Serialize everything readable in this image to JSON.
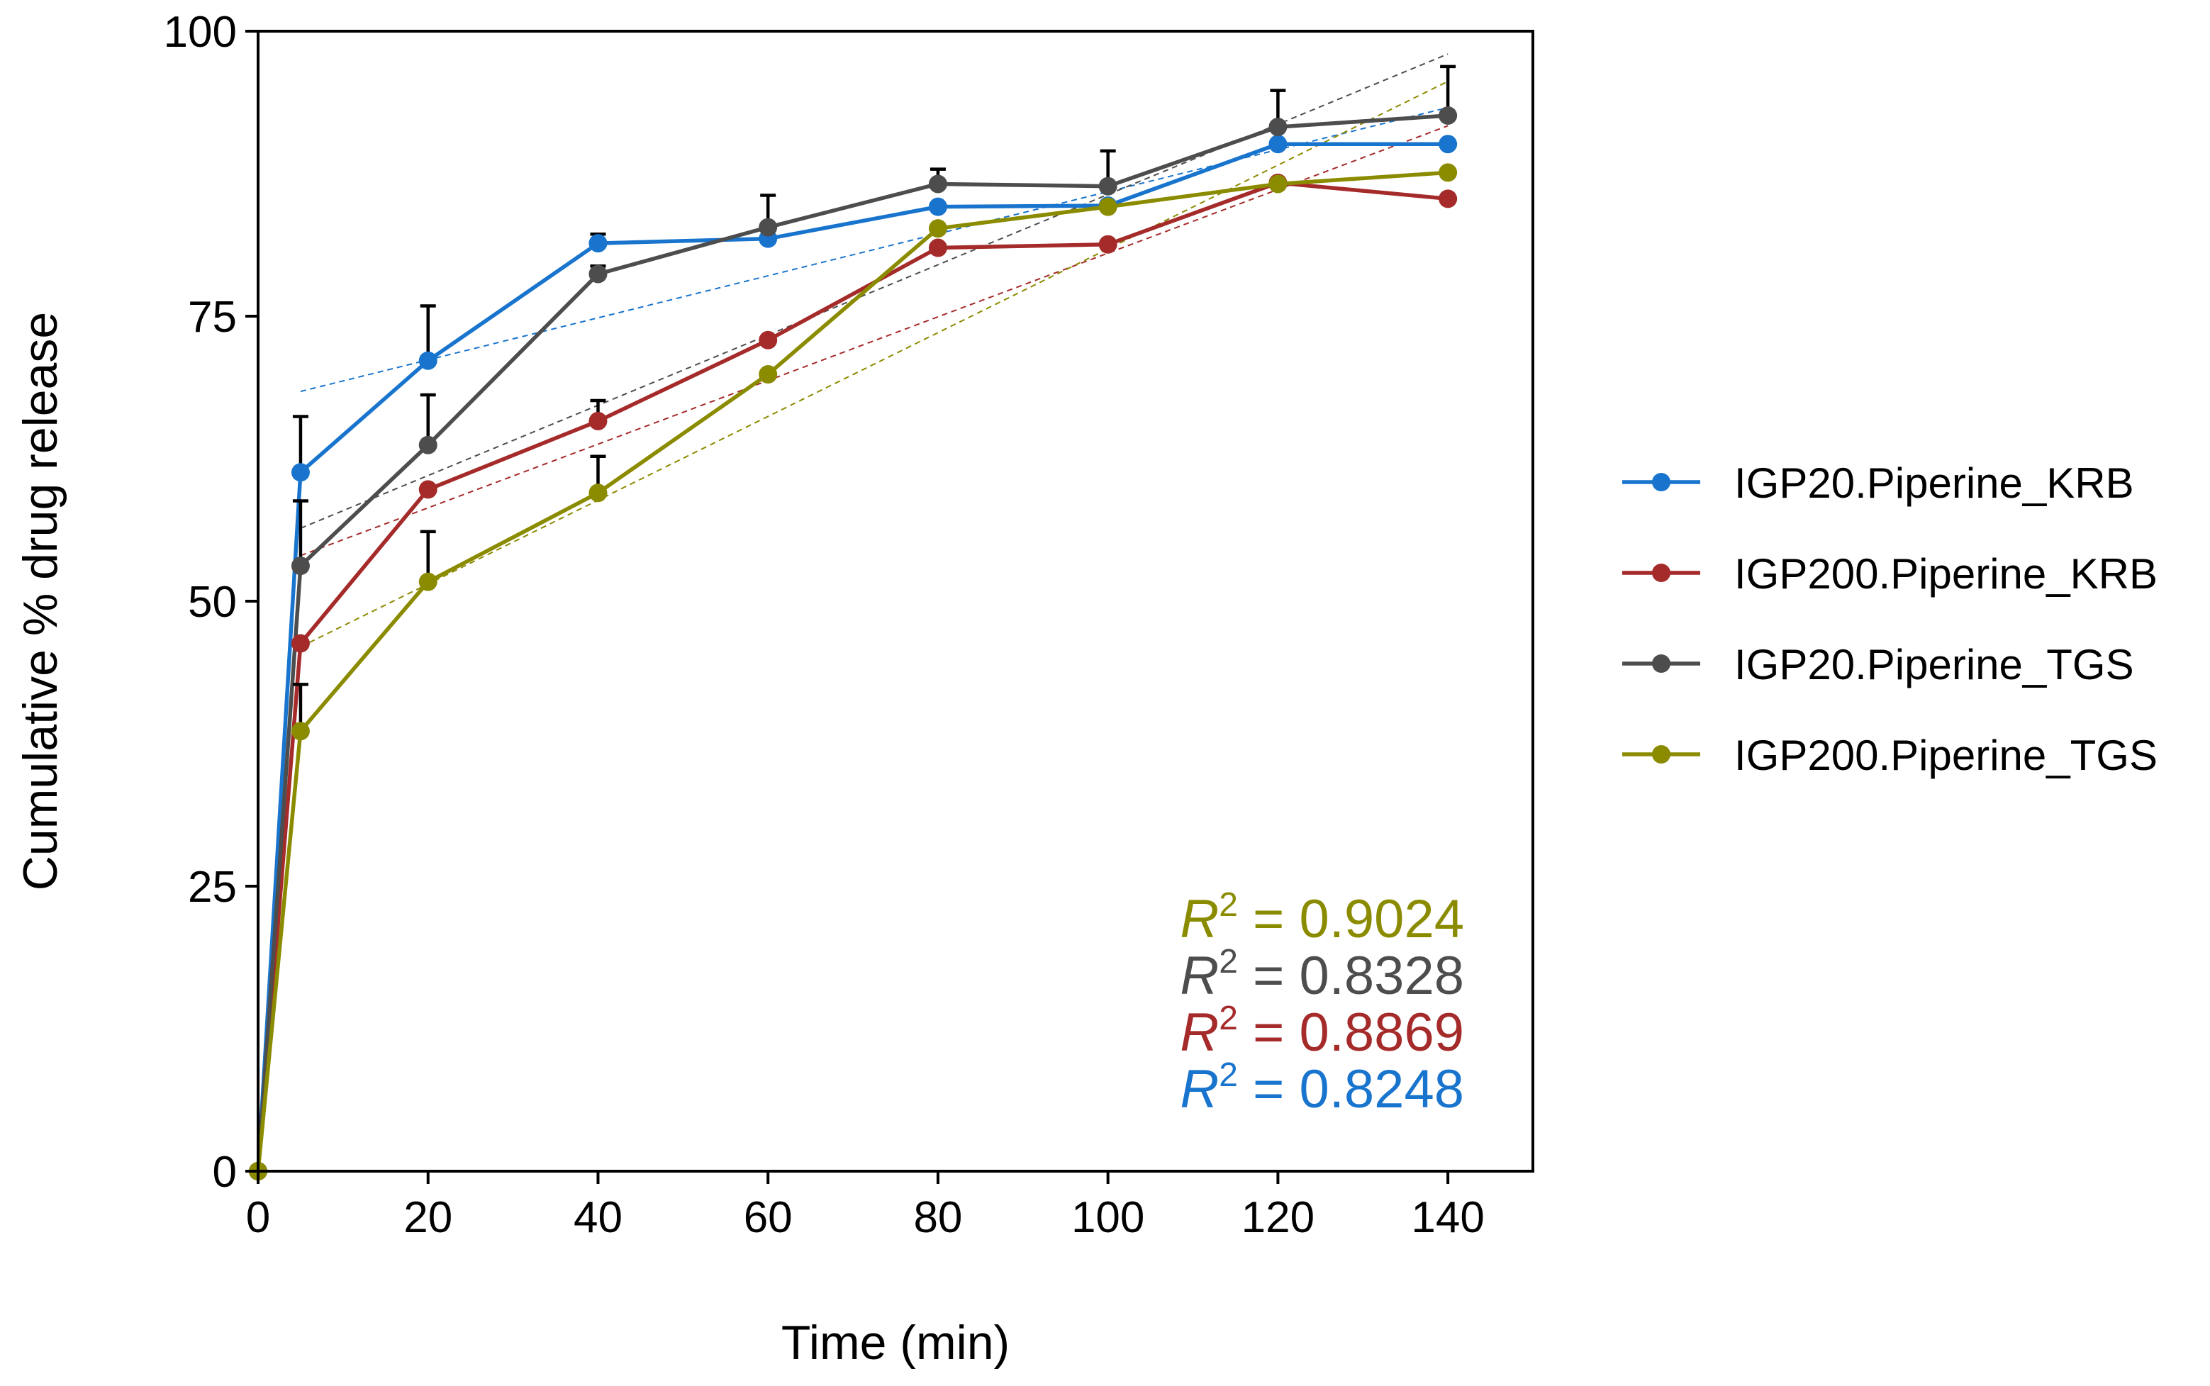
{
  "chart_data": {
    "type": "line",
    "title": "",
    "xlabel": "Time (min)",
    "ylabel": "Cumulative % drug release",
    "xlim": [
      0,
      150
    ],
    "ylim": [
      0,
      100
    ],
    "x_ticks": [
      0,
      20,
      40,
      60,
      80,
      100,
      120,
      140
    ],
    "y_ticks": [
      0,
      25,
      50,
      75,
      100
    ],
    "grid": false,
    "legend_position": "right",
    "x": [
      0,
      5,
      20,
      40,
      60,
      80,
      100,
      120,
      140
    ],
    "series": [
      {
        "name": "IGP20.Piperine_KRB",
        "color": "#1874CD",
        "values": [
          0,
          61.3,
          71.1,
          81.4,
          81.8,
          84.6,
          84.7,
          90.1,
          90.1
        ],
        "errors": [
          0,
          4.9,
          4.8,
          0.8,
          0,
          0,
          0,
          0,
          0
        ],
        "r2": "0.8248",
        "trend": [
          68.4,
          93.3
        ]
      },
      {
        "name": "IGP200.Piperine_KRB",
        "color": "#A52A2A",
        "values": [
          0,
          46.3,
          59.8,
          65.8,
          72.9,
          81.0,
          81.3,
          86.7,
          85.3
        ],
        "errors": [
          0,
          0,
          0,
          1.8,
          0,
          0,
          0,
          0,
          0
        ],
        "r2": "0.8869",
        "trend": [
          54.0,
          91.7
        ]
      },
      {
        "name": "IGP20.Piperine_TGS",
        "color": "#4D4D4D",
        "values": [
          0,
          53.1,
          63.7,
          78.7,
          82.8,
          86.6,
          86.4,
          91.6,
          92.6
        ],
        "errors": [
          0,
          5.7,
          4.4,
          0.7,
          2.8,
          1.3,
          3.1,
          3.2,
          4.3
        ],
        "r2": "0.8328",
        "trend": [
          56.4,
          98.0
        ]
      },
      {
        "name": "IGP200.Piperine_TGS",
        "color": "#8B8B00",
        "values": [
          0,
          38.6,
          51.7,
          59.5,
          69.9,
          82.7,
          84.6,
          86.6,
          87.6
        ],
        "errors": [
          0,
          4.1,
          4.4,
          3.2,
          0,
          0,
          0,
          0,
          0
        ],
        "r2": "0.9024",
        "trend": [
          46.0,
          95.6
        ]
      }
    ],
    "r2_label": "R",
    "r2_superscript": "2",
    "r2_equals": " = ",
    "r2_order": [
      3,
      2,
      1,
      0
    ]
  }
}
